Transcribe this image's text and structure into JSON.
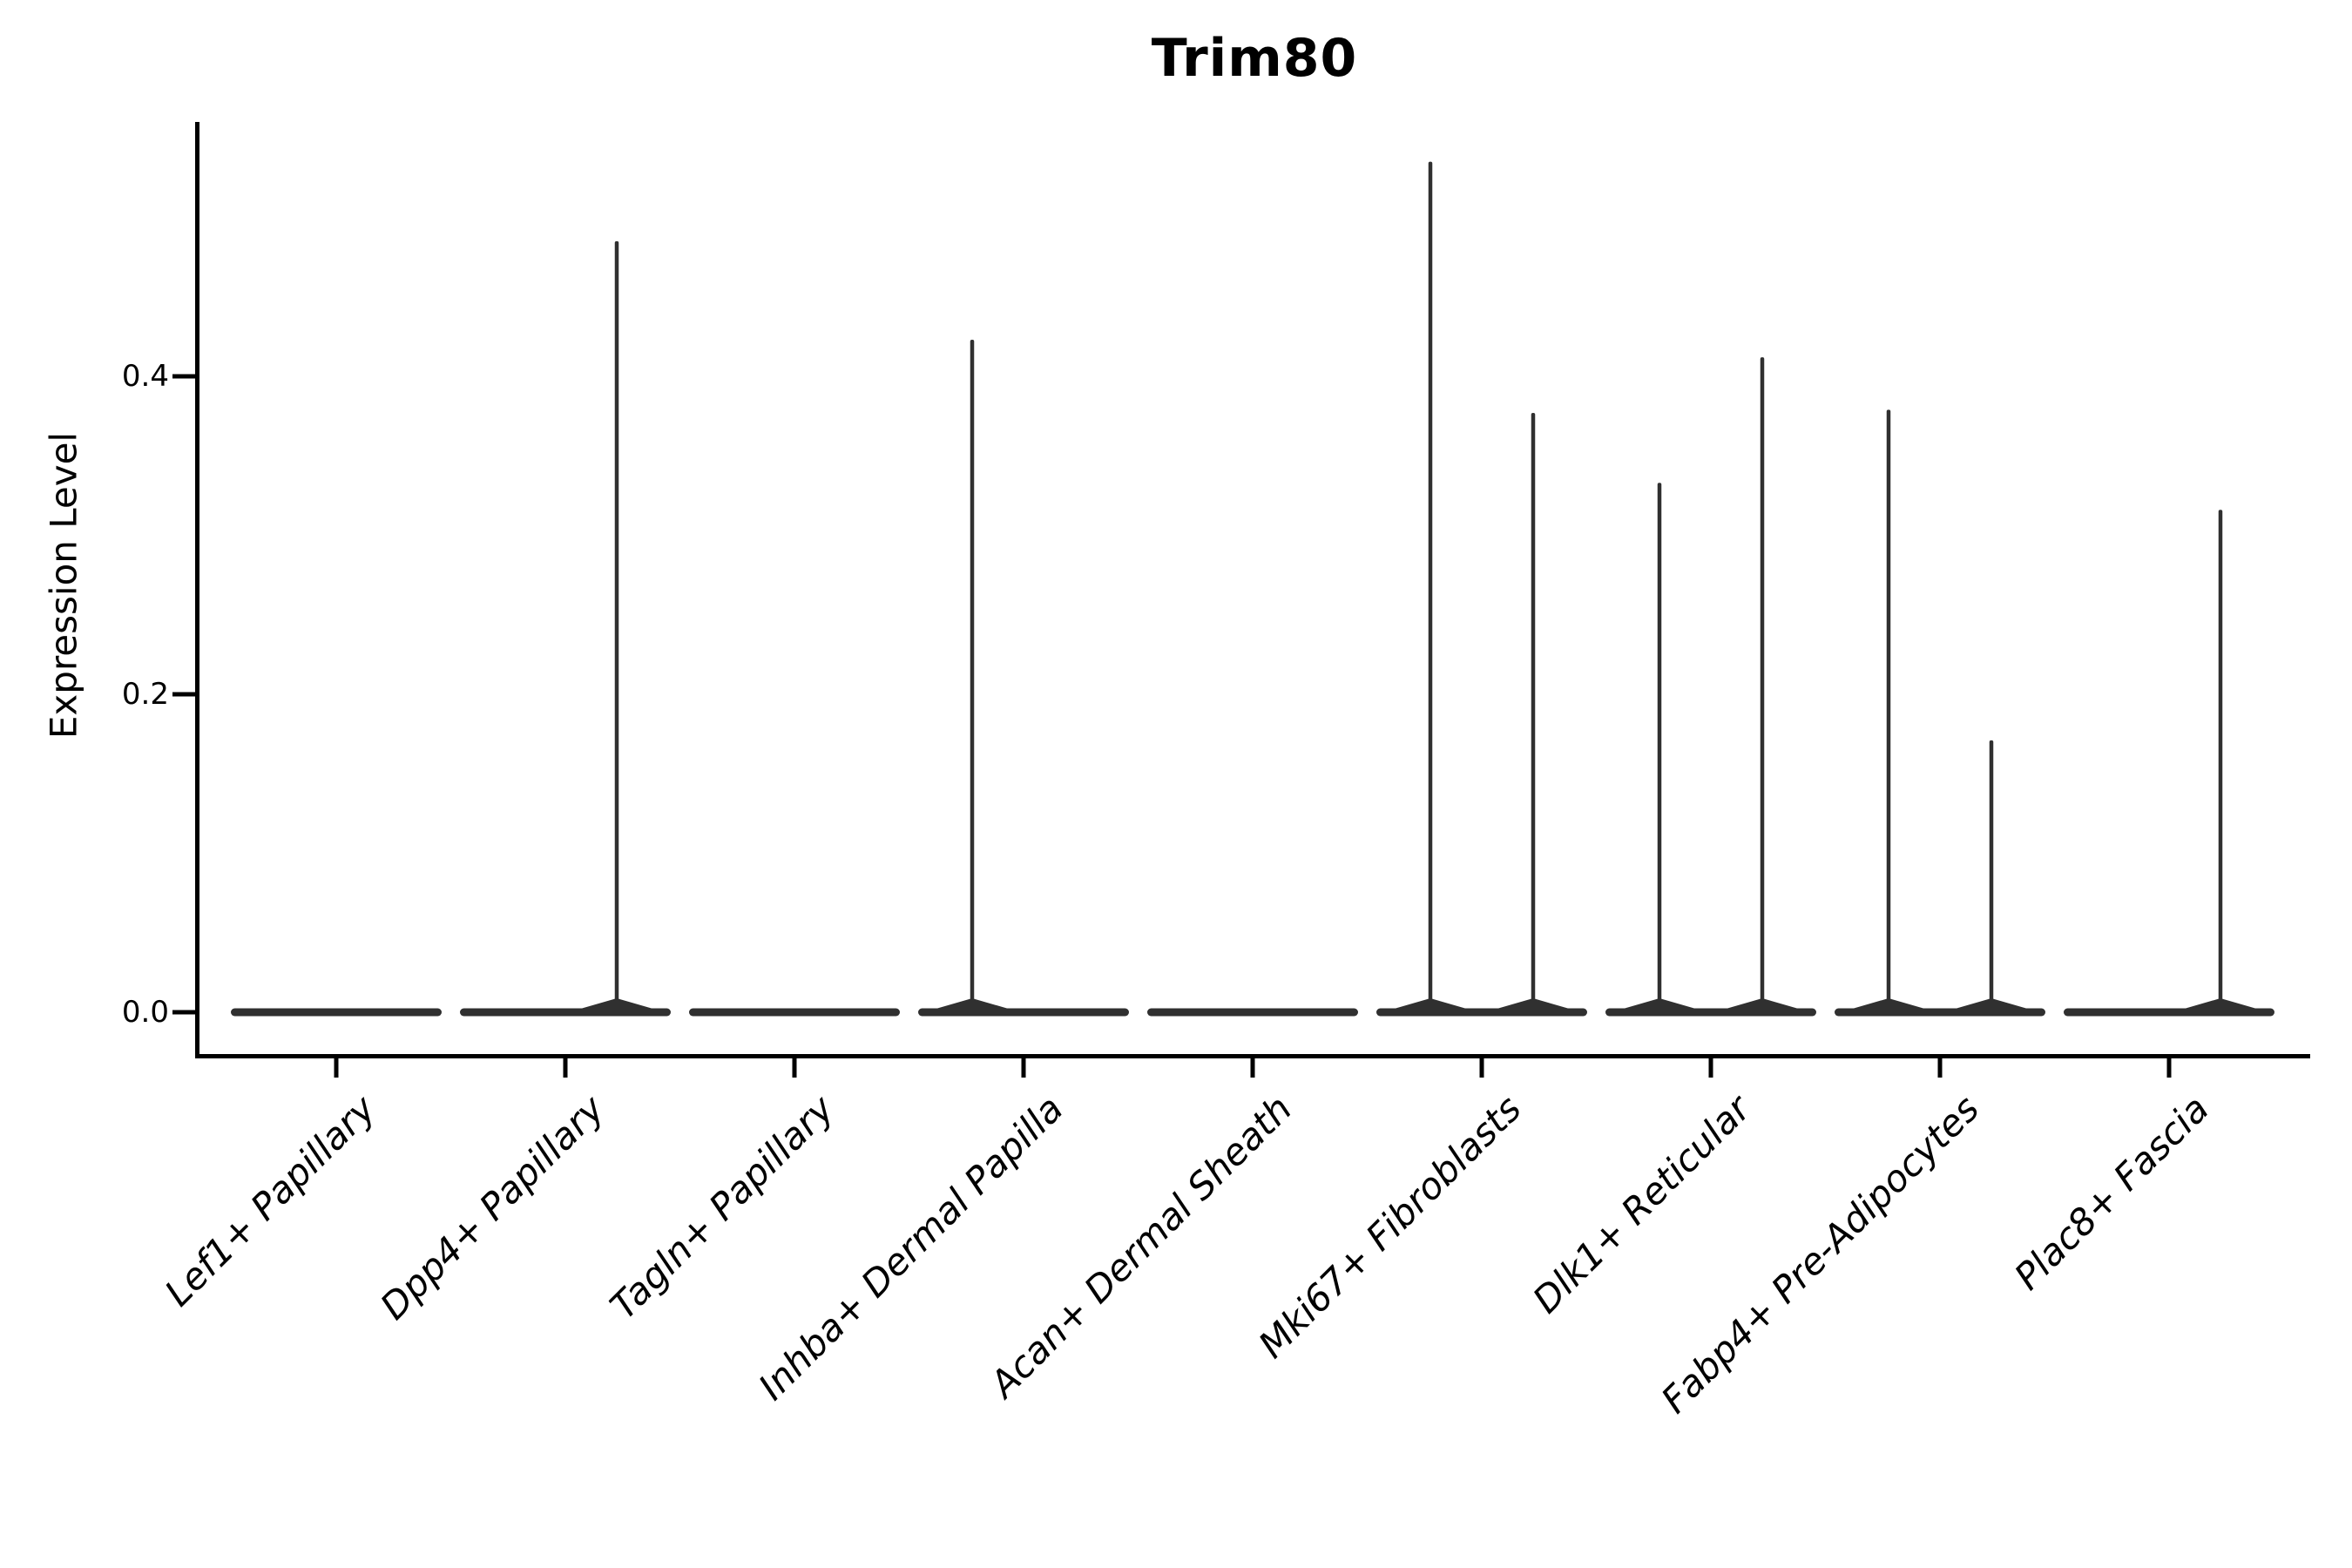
{
  "title": "Trim80",
  "y_axis": {
    "label": "Expression Level",
    "tick_labels": [
      "0.0",
      "0.2",
      "0.4"
    ]
  },
  "x_axis": {
    "categories": [
      "Lef1+ Papillary",
      "Dpp4+ Papillary",
      "Tagln+ Papillary",
      "Inhba+ Dermal Papilla",
      "Acan+ Dermal Sheath",
      "Mki67+ Fibroblasts",
      "Dlk1+ Reticular",
      "Fabp4+ Pre-Adipocytes",
      "Plac8+ Fascia"
    ]
  },
  "colors": {
    "violin": "#303030",
    "axis": "#000000",
    "text": "#000000",
    "background": "#ffffff"
  },
  "chart_data": {
    "type": "violin",
    "title": "Trim80",
    "xlabel": "",
    "ylabel": "Expression Level",
    "yticks": [
      0.0,
      0.2,
      0.4
    ],
    "ylim": [
      0,
      0.56
    ],
    "grid": false,
    "legend": false,
    "note": "Nearly all cells express 0; each violin collapses to a flat horizontal bar at y=0. Two sub-violins per category (left/right); a thin vertical spike rises to the maximum expression where any cells are positive.",
    "categories": [
      "Lef1+ Papillary",
      "Dpp4+ Papillary",
      "Tagln+ Papillary",
      "Inhba+ Dermal Papilla",
      "Acan+ Dermal Sheath",
      "Mki67+ Fibroblasts",
      "Dlk1+ Reticular",
      "Fabp4+ Pre-Adipocytes",
      "Plac8+ Fascia"
    ],
    "violins_per_category": 2,
    "series": [
      {
        "category": "Lef1+ Papillary",
        "violin": 1,
        "max_expression": 0
      },
      {
        "category": "Lef1+ Papillary",
        "violin": 2,
        "max_expression": 0
      },
      {
        "category": "Dpp4+ Papillary",
        "violin": 1,
        "max_expression": 0
      },
      {
        "category": "Dpp4+ Papillary",
        "violin": 2,
        "max_expression": 0.485
      },
      {
        "category": "Tagln+ Papillary",
        "violin": 1,
        "max_expression": 0
      },
      {
        "category": "Tagln+ Papillary",
        "violin": 2,
        "max_expression": 0
      },
      {
        "category": "Inhba+ Dermal Papilla",
        "violin": 1,
        "max_expression": 0.423
      },
      {
        "category": "Inhba+ Dermal Papilla",
        "violin": 2,
        "max_expression": 0
      },
      {
        "category": "Acan+ Dermal Sheath",
        "violin": 1,
        "max_expression": 0
      },
      {
        "category": "Acan+ Dermal Sheath",
        "violin": 2,
        "max_expression": 0
      },
      {
        "category": "Mki67+ Fibroblasts",
        "violin": 1,
        "max_expression": 0.535
      },
      {
        "category": "Mki67+ Fibroblasts",
        "violin": 2,
        "max_expression": 0.377
      },
      {
        "category": "Dlk1+ Reticular",
        "violin": 1,
        "max_expression": 0.333
      },
      {
        "category": "Dlk1+ Reticular",
        "violin": 2,
        "max_expression": 0.412
      },
      {
        "category": "Fabp4+ Pre-Adipocytes",
        "violin": 1,
        "max_expression": 0.379
      },
      {
        "category": "Fabp4+ Pre-Adipocytes",
        "violin": 2,
        "max_expression": 0.171
      },
      {
        "category": "Plac8+ Fascia",
        "violin": 1,
        "max_expression": 0
      },
      {
        "category": "Plac8+ Fascia",
        "violin": 2,
        "max_expression": 0.316
      }
    ]
  }
}
